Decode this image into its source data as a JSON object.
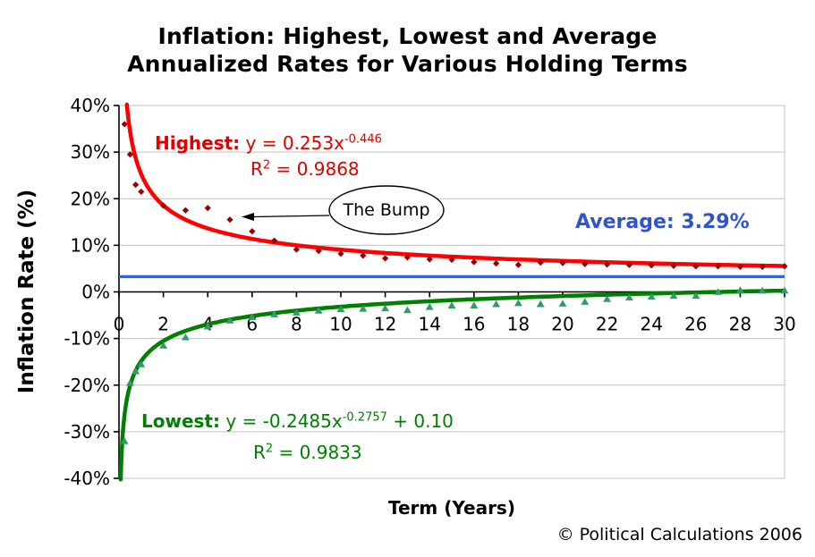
{
  "title": {
    "line1": "Inflation: Highest, Lowest and Average",
    "line2": "Annualized Rates for Various Holding Terms"
  },
  "axes": {
    "x_label": "Term (Years)",
    "y_label": "Inflation Rate (%)",
    "x_ticks": [
      {
        "v": 0,
        "t": "0"
      },
      {
        "v": 2,
        "t": "2"
      },
      {
        "v": 4,
        "t": "4"
      },
      {
        "v": 6,
        "t": "6"
      },
      {
        "v": 8,
        "t": "8"
      },
      {
        "v": 10,
        "t": "10"
      },
      {
        "v": 12,
        "t": "12"
      },
      {
        "v": 14,
        "t": "14"
      },
      {
        "v": 16,
        "t": "16"
      },
      {
        "v": 18,
        "t": "18"
      },
      {
        "v": 20,
        "t": "20"
      },
      {
        "v": 22,
        "t": "22"
      },
      {
        "v": 24,
        "t": "24"
      },
      {
        "v": 26,
        "t": "26"
      },
      {
        "v": 28,
        "t": "28"
      },
      {
        "v": 30,
        "t": "30"
      }
    ],
    "y_ticks": [
      {
        "v": 40,
        "t": "40%"
      },
      {
        "v": 30,
        "t": "30%"
      },
      {
        "v": 20,
        "t": "20%"
      },
      {
        "v": 10,
        "t": "10%"
      },
      {
        "v": 0,
        "t": "0%"
      },
      {
        "v": -10,
        "t": "-10%"
      },
      {
        "v": -20,
        "t": "-20%"
      },
      {
        "v": -30,
        "t": "-30%"
      },
      {
        "v": -40,
        "t": "-40%"
      }
    ]
  },
  "annotations": {
    "highest": {
      "label": "Highest:",
      "eq_body": " y = 0.253x",
      "eq_exp": "-0.446",
      "eq_tail": "",
      "r2_base": "R",
      "r2_sup": "2",
      "r2_rest": " = 0.9868"
    },
    "lowest": {
      "label": "Lowest:",
      "eq_body": " y = -0.2485x",
      "eq_exp": "-0.2757",
      "eq_tail": " + 0.10",
      "r2_base": "R",
      "r2_sup": "2",
      "r2_rest": " = 0.9833"
    },
    "average_label": "Average: 3.29%",
    "bump_label": "The Bump"
  },
  "footer": {
    "copyright": "© Political Calculations 2006"
  },
  "colors": {
    "highest_curve": "#FF0000",
    "highest_marker": "#990000",
    "highest_text": "#E00000",
    "lowest_curve": "#008000",
    "lowest_marker": "#339966",
    "lowest_text": "#008000",
    "average_line": "#3A63D2",
    "average_text": "#2E55CC",
    "gridline": "#C0C0C0",
    "axis": "#000000"
  },
  "chart_data": {
    "type": "scatter",
    "title": "Inflation: Highest, Lowest and Average Annualized Rates for Various Holding Terms",
    "xlabel": "Term (Years)",
    "ylabel": "Inflation Rate (%)",
    "xlim": [
      0,
      30
    ],
    "ylim": [
      -40,
      40
    ],
    "grid": "horizontal",
    "legend": "none",
    "annotation": {
      "text": "The Bump",
      "target": {
        "x": 5,
        "y": 15.5
      }
    },
    "series": [
      {
        "name": "average",
        "type": "hline",
        "value": 3.29,
        "color": "#3A63D2",
        "label": "Average: 3.29%"
      },
      {
        "name": "highest-fit",
        "type": "trendline",
        "equation": "y = 0.253x^-0.446",
        "r2": 0.9868,
        "params": {
          "a": 0.253,
          "b": -0.446,
          "c": 0
        },
        "color": "#FF0000"
      },
      {
        "name": "highest",
        "type": "scatter",
        "marker": "diamond",
        "color": "#990000",
        "points": [
          [
            0.25,
            36
          ],
          [
            0.5,
            29.5
          ],
          [
            0.75,
            23
          ],
          [
            1,
            21.5
          ],
          [
            2,
            18.5
          ],
          [
            3,
            17.5
          ],
          [
            4,
            18
          ],
          [
            5,
            15.5
          ],
          [
            6,
            13
          ],
          [
            7,
            11
          ],
          [
            8,
            9.1
          ],
          [
            9,
            8.8
          ],
          [
            10,
            8.2
          ],
          [
            11,
            7.8
          ],
          [
            12,
            7.2
          ],
          [
            13,
            7.4
          ],
          [
            14,
            7
          ],
          [
            15,
            6.9
          ],
          [
            16,
            6.4
          ],
          [
            17,
            6.1
          ],
          [
            18,
            5.8
          ],
          [
            19,
            6.3
          ],
          [
            20,
            6.2
          ],
          [
            21,
            6
          ],
          [
            22,
            5.9
          ],
          [
            23,
            5.8
          ],
          [
            24,
            5.7
          ],
          [
            25,
            5.6
          ],
          [
            26,
            5.5
          ],
          [
            27,
            5.5
          ],
          [
            28,
            5.4
          ],
          [
            29,
            5.4
          ],
          [
            30,
            5.5
          ]
        ]
      },
      {
        "name": "lowest-fit",
        "type": "trendline",
        "equation": "y = -0.2485x^-0.2757 + 0.10",
        "r2": 0.9833,
        "params": {
          "a": -0.2485,
          "b": -0.2757,
          "c": 0.1
        },
        "color": "#008000"
      },
      {
        "name": "lowest",
        "type": "scatter",
        "marker": "triangle",
        "color": "#339966",
        "points": [
          [
            0.25,
            -32
          ],
          [
            0.5,
            -19.5
          ],
          [
            0.75,
            -17
          ],
          [
            1,
            -15.5
          ],
          [
            2,
            -11.5
          ],
          [
            3,
            -9.7
          ],
          [
            4,
            -7.4
          ],
          [
            5,
            -6.1
          ],
          [
            6,
            -5.4
          ],
          [
            7,
            -4.8
          ],
          [
            8,
            -4.4
          ],
          [
            9,
            -4
          ],
          [
            10,
            -3.7
          ],
          [
            11,
            -3.6
          ],
          [
            12,
            -3.5
          ],
          [
            13,
            -3.9
          ],
          [
            14,
            -3.2
          ],
          [
            15,
            -2.9
          ],
          [
            16,
            -2.9
          ],
          [
            17,
            -2.6
          ],
          [
            18,
            -2.4
          ],
          [
            19,
            -2.6
          ],
          [
            20,
            -2.5
          ],
          [
            21,
            -2.1
          ],
          [
            22,
            -1.5
          ],
          [
            23,
            -1.2
          ],
          [
            24,
            -1
          ],
          [
            25,
            -0.8
          ],
          [
            26,
            -0.8
          ],
          [
            27,
            0
          ],
          [
            28,
            0.4
          ],
          [
            29,
            0.3
          ],
          [
            30,
            0.3
          ]
        ]
      }
    ]
  }
}
